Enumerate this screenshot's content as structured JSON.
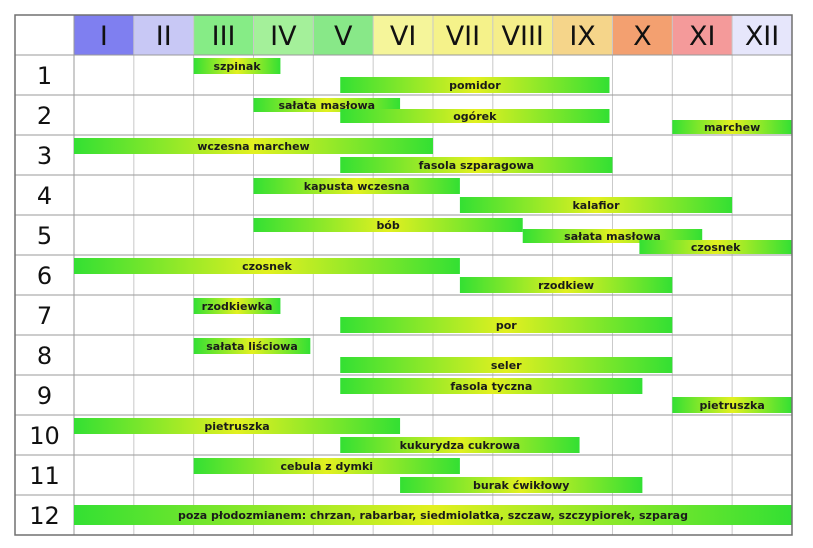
{
  "chart_data": {
    "type": "gantt",
    "months": [
      "I",
      "II",
      "III",
      "IV",
      "V",
      "VI",
      "VII",
      "VIII",
      "IX",
      "X",
      "XI",
      "XII"
    ],
    "month_colors": [
      "#7f7ff0",
      "#c8c8f5",
      "#86ec86",
      "#a4f09a",
      "#88e888",
      "#f5f59a",
      "#f5f28a",
      "#f5ee8a",
      "#f5d58a",
      "#f3a070",
      "#f49a9a",
      "#e6e6fb"
    ],
    "rows": [
      "1",
      "2",
      "3",
      "4",
      "5",
      "6",
      "7",
      "8",
      "9",
      "10",
      "11",
      "12"
    ],
    "bars": [
      {
        "row": 1,
        "label": "szpinak",
        "start": 3.0,
        "end": 4.45
      },
      {
        "row": 1,
        "label": "pomidor",
        "start": 5.45,
        "end": 9.95
      },
      {
        "row": 2,
        "label": "sałata masłowa",
        "start": 4.0,
        "end": 6.45
      },
      {
        "row": 2,
        "label": "ogórek",
        "start": 5.45,
        "end": 9.95
      },
      {
        "row": 2,
        "label": "marchew",
        "start": 11.0,
        "end": 13.0
      },
      {
        "row": 3,
        "label": "wczesna marchew",
        "start": 1.0,
        "end": 7.0
      },
      {
        "row": 3,
        "label": "fasola szparagowa",
        "start": 5.45,
        "end": 10.0
      },
      {
        "row": 4,
        "label": "kapusta wczesna",
        "start": 4.0,
        "end": 7.45
      },
      {
        "row": 4,
        "label": "kalafior",
        "start": 7.45,
        "end": 12.0
      },
      {
        "row": 5,
        "label": "bób",
        "start": 4.0,
        "end": 8.5
      },
      {
        "row": 5,
        "label": "sałata masłowa",
        "start": 8.5,
        "end": 11.5
      },
      {
        "row": 5,
        "label": "czosnek",
        "start": 10.45,
        "end": 13.0
      },
      {
        "row": 6,
        "label": "czosnek",
        "start": 1.0,
        "end": 7.45
      },
      {
        "row": 6,
        "label": "rzodkiew",
        "start": 7.45,
        "end": 11.0
      },
      {
        "row": 7,
        "label": "rzodkiewka",
        "start": 3.0,
        "end": 4.45
      },
      {
        "row": 7,
        "label": "por",
        "start": 5.45,
        "end": 11.0
      },
      {
        "row": 8,
        "label": "sałata liściowa",
        "start": 3.0,
        "end": 4.95
      },
      {
        "row": 8,
        "label": "seler",
        "start": 5.45,
        "end": 11.0
      },
      {
        "row": 9,
        "label": "fasola tyczna",
        "start": 5.45,
        "end": 10.5
      },
      {
        "row": 9,
        "label": "pietruszka",
        "start": 11.0,
        "end": 13.0
      },
      {
        "row": 10,
        "label": "pietruszka",
        "start": 1.0,
        "end": 6.45
      },
      {
        "row": 10,
        "label": "kukurydza cukrowa",
        "start": 5.45,
        "end": 9.45
      },
      {
        "row": 11,
        "label": "cebula z dymki",
        "start": 3.0,
        "end": 7.45
      },
      {
        "row": 11,
        "label": "burak ćwikłowy",
        "start": 6.45,
        "end": 10.5
      },
      {
        "row": 12,
        "label": "poza płodozmianem: chrzan, rabarbar, siedmiolatka, szczaw, szczypiorek, szparag",
        "start": 1.0,
        "end": 13.0
      }
    ]
  }
}
